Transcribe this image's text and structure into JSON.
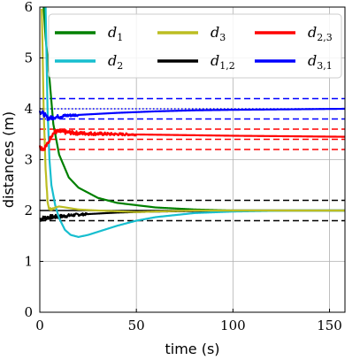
{
  "chart_data": {
    "type": "line",
    "xlabel": "time (s)",
    "ylabel": "distances (m)",
    "xlim": [
      0,
      158
    ],
    "ylim": [
      0,
      6
    ],
    "xticks": [
      0,
      50,
      100,
      150
    ],
    "yticks": [
      0,
      1,
      2,
      3,
      4,
      5,
      6
    ],
    "grid": true,
    "legend_placement": "top-right",
    "legend_columns": 3,
    "reference_lines": [
      {
        "color": "#000000",
        "style": "dashed",
        "y": [
          1.8,
          2.2
        ]
      },
      {
        "color": "#000000",
        "style": "solid",
        "y": [
          2.0
        ]
      },
      {
        "color": "#ff0000",
        "style": "dashed",
        "y": [
          3.2,
          3.6,
          3.4
        ]
      },
      {
        "color": "#0000ff",
        "style": "dashed",
        "y": [
          3.8,
          4.2
        ]
      },
      {
        "color": "#0000ff",
        "style": "dotted",
        "y": [
          4.0
        ]
      }
    ],
    "series": [
      {
        "name": "d1",
        "sub": "1",
        "color": "#008000",
        "x": [
          2,
          3,
          5,
          7,
          10,
          15,
          20,
          30,
          40,
          60,
          80,
          100,
          130,
          158
        ],
        "y": [
          6.0,
          5.4,
          4.6,
          3.7,
          3.1,
          2.65,
          2.45,
          2.25,
          2.15,
          2.06,
          2.02,
          2.0,
          2.0,
          2.0
        ]
      },
      {
        "name": "d2",
        "sub": "2",
        "color": "#17becf",
        "x": [
          3,
          4,
          5,
          6,
          8,
          10,
          13,
          16,
          20,
          25,
          30,
          40,
          50,
          60,
          80,
          100,
          130,
          158
        ],
        "y": [
          6.0,
          4.0,
          3.0,
          2.5,
          2.1,
          1.85,
          1.62,
          1.52,
          1.48,
          1.52,
          1.58,
          1.7,
          1.8,
          1.87,
          1.95,
          1.98,
          2.0,
          2.0
        ]
      },
      {
        "name": "d3",
        "sub": "3",
        "color": "#bcbd22",
        "x": [
          1,
          2,
          3,
          4,
          5,
          7,
          10,
          15,
          20,
          30,
          50,
          80,
          158
        ],
        "y": [
          6.0,
          4.0,
          2.8,
          2.2,
          2.02,
          2.05,
          2.08,
          2.05,
          2.02,
          2.0,
          1.97,
          2.0,
          2.0
        ],
        "noisy_until": 8,
        "noise": 0.05
      },
      {
        "name": "d1,2",
        "sub": "1,2",
        "color": "#000000",
        "x": [
          0,
          2,
          5,
          10,
          15,
          20,
          30,
          40,
          60,
          80,
          100,
          130,
          158
        ],
        "y": [
          1.83,
          1.85,
          1.87,
          1.88,
          1.9,
          1.92,
          1.94,
          1.96,
          1.98,
          1.99,
          2.0,
          2.0,
          2.0
        ],
        "noisy_until": 25,
        "noise": 0.05
      },
      {
        "name": "d2,3",
        "sub": "2,3",
        "color": "#ff0000",
        "x": [
          0,
          2,
          4,
          6,
          8,
          10,
          20,
          40,
          60,
          80,
          100,
          130,
          158
        ],
        "y": [
          3.25,
          3.22,
          3.3,
          3.48,
          3.55,
          3.55,
          3.52,
          3.5,
          3.49,
          3.48,
          3.47,
          3.46,
          3.45
        ],
        "noisy_until": 50,
        "noise": 0.05
      },
      {
        "name": "d3,1",
        "sub": "3,1",
        "color": "#0000ff",
        "x": [
          0,
          2,
          4,
          6,
          8,
          10,
          15,
          20,
          40,
          60,
          80,
          100,
          130,
          158
        ],
        "y": [
          3.95,
          3.9,
          3.82,
          3.82,
          3.84,
          3.85,
          3.87,
          3.88,
          3.92,
          3.95,
          3.97,
          3.98,
          3.99,
          4.0
        ],
        "noisy_until": 20,
        "noise": 0.05
      }
    ]
  }
}
